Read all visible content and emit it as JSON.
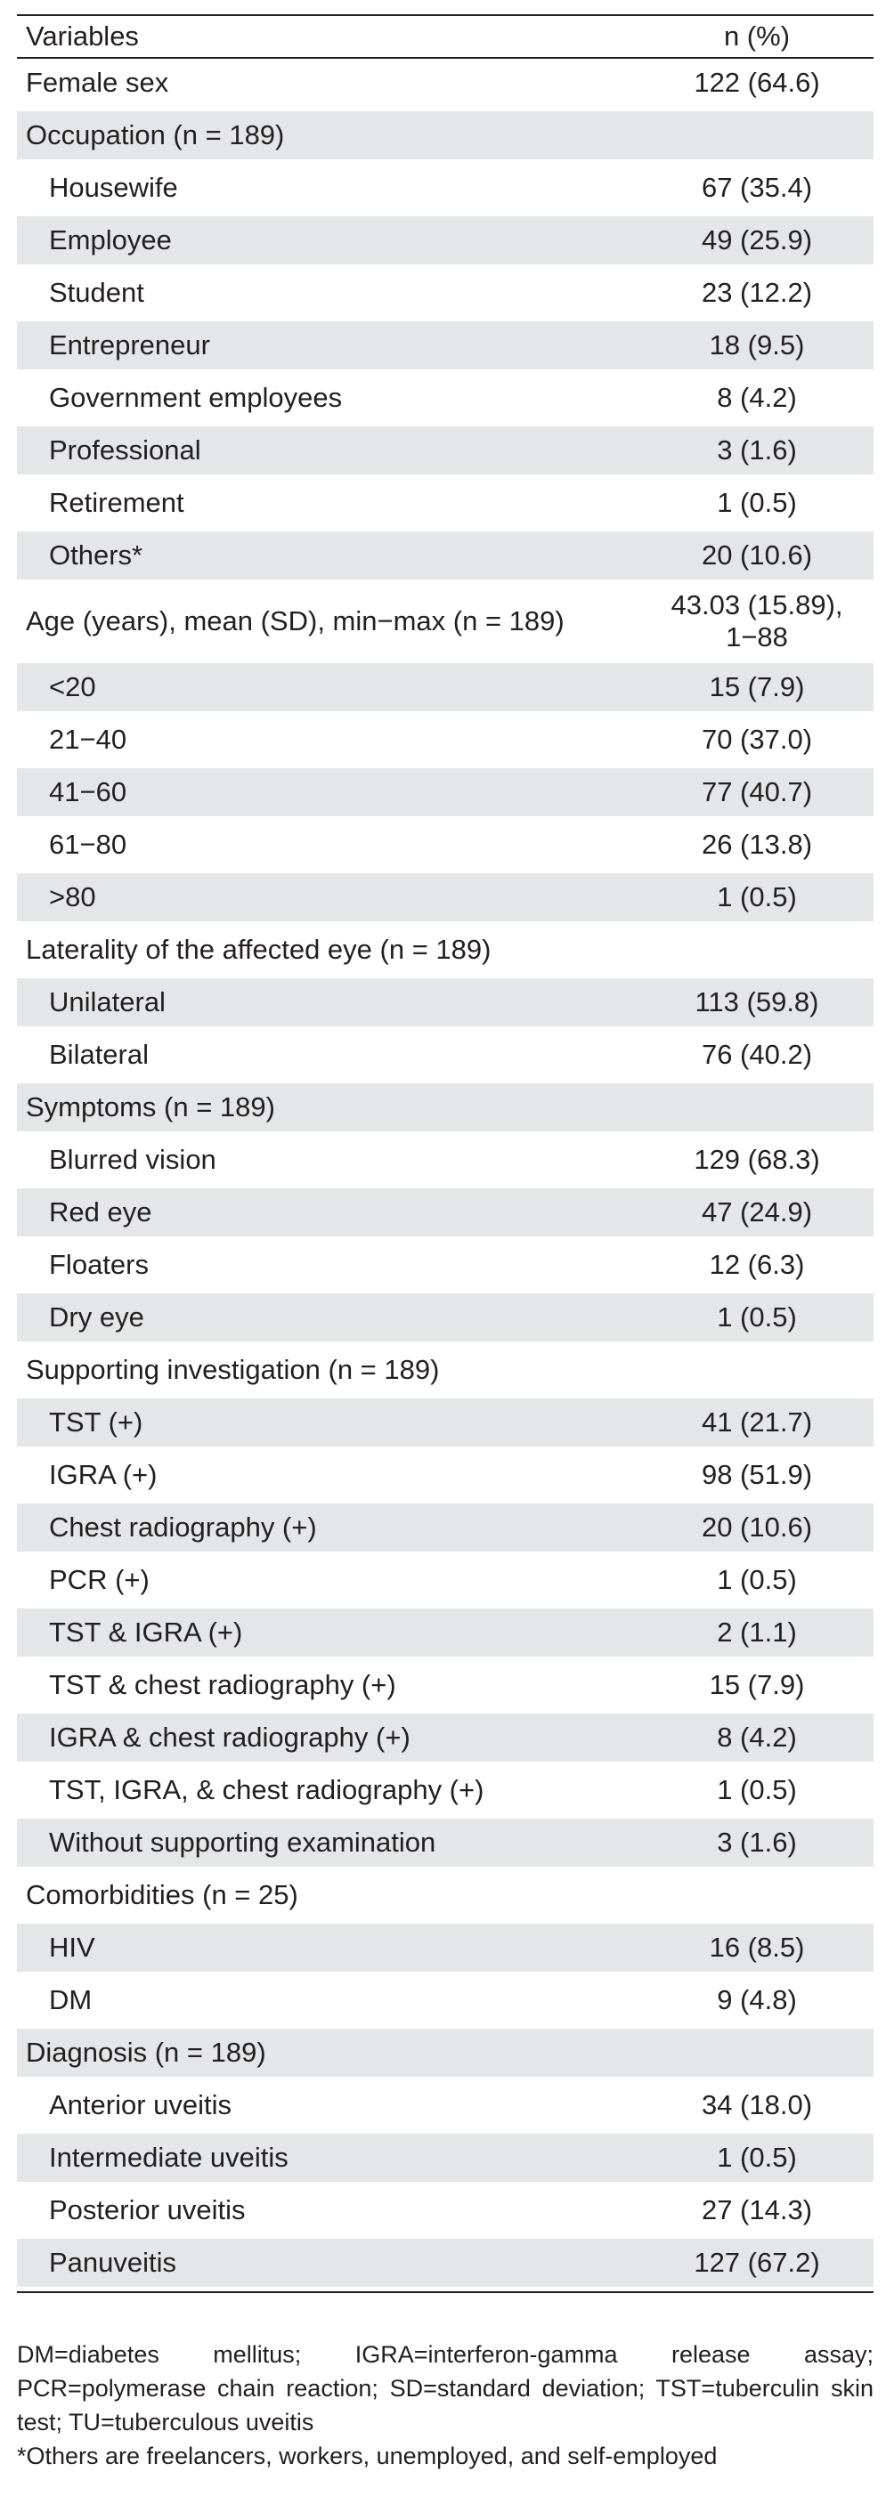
{
  "table": {
    "headers": [
      "Variables",
      "n (%)"
    ],
    "rows": [
      {
        "label": "Female sex",
        "value": "122 (64.6)",
        "indent": false,
        "shade": false
      },
      {
        "label": "Occupation (n = 189)",
        "value": "",
        "indent": false,
        "shade": true
      },
      {
        "label": "Housewife",
        "value": "67 (35.4)",
        "indent": true,
        "shade": false
      },
      {
        "label": "Employee",
        "value": "49 (25.9)",
        "indent": true,
        "shade": true
      },
      {
        "label": "Student",
        "value": "23 (12.2)",
        "indent": true,
        "shade": false
      },
      {
        "label": "Entrepreneur",
        "value": "18 (9.5)",
        "indent": true,
        "shade": true
      },
      {
        "label": "Government employees",
        "value": "8 (4.2)",
        "indent": true,
        "shade": false
      },
      {
        "label": "Professional",
        "value": "3 (1.6)",
        "indent": true,
        "shade": true
      },
      {
        "label": "Retirement",
        "value": "1 (0.5)",
        "indent": true,
        "shade": false
      },
      {
        "label": "Others*",
        "value": "20 (10.6)",
        "indent": true,
        "shade": true
      },
      {
        "label": "Age (years), mean (SD), min−max (n = 189)",
        "value": "43.03 (15.89), 1−88",
        "indent": false,
        "shade": false,
        "tall": true
      },
      {
        "label": "<20",
        "value": "15 (7.9)",
        "indent": true,
        "shade": true
      },
      {
        "label": "21−40",
        "value": "70 (37.0)",
        "indent": true,
        "shade": false
      },
      {
        "label": "41−60",
        "value": "77 (40.7)",
        "indent": true,
        "shade": true
      },
      {
        "label": "61−80",
        "value": "26 (13.8)",
        "indent": true,
        "shade": false
      },
      {
        "label": ">80",
        "value": "1 (0.5)",
        "indent": true,
        "shade": true
      },
      {
        "label": "Laterality of the affected eye (n = 189)",
        "value": "",
        "indent": false,
        "shade": false
      },
      {
        "label": "Unilateral",
        "value": "113 (59.8)",
        "indent": true,
        "shade": true
      },
      {
        "label": "Bilateral",
        "value": "76 (40.2)",
        "indent": true,
        "shade": false
      },
      {
        "label": "Symptoms (n = 189)",
        "value": "",
        "indent": false,
        "shade": true
      },
      {
        "label": "Blurred vision",
        "value": "129 (68.3)",
        "indent": true,
        "shade": false
      },
      {
        "label": "Red eye",
        "value": "47 (24.9)",
        "indent": true,
        "shade": true
      },
      {
        "label": "Floaters",
        "value": "12 (6.3)",
        "indent": true,
        "shade": false
      },
      {
        "label": "Dry eye",
        "value": "1 (0.5)",
        "indent": true,
        "shade": true
      },
      {
        "label": "Supporting investigation (n = 189)",
        "value": "",
        "indent": false,
        "shade": false
      },
      {
        "label": "TST (+)",
        "value": "41 (21.7)",
        "indent": true,
        "shade": true
      },
      {
        "label": "IGRA (+)",
        "value": "98 (51.9)",
        "indent": true,
        "shade": false
      },
      {
        "label": "Chest radiography (+)",
        "value": "20 (10.6)",
        "indent": true,
        "shade": true
      },
      {
        "label": "PCR (+)",
        "value": "1 (0.5)",
        "indent": true,
        "shade": false
      },
      {
        "label": "TST & IGRA (+)",
        "value": "2 (1.1)",
        "indent": true,
        "shade": true
      },
      {
        "label": "TST & chest radiography (+)",
        "value": "15 (7.9)",
        "indent": true,
        "shade": false
      },
      {
        "label": "IGRA & chest radiography (+)",
        "value": "8 (4.2)",
        "indent": true,
        "shade": true
      },
      {
        "label": "TST, IGRA, & chest radiography (+)",
        "value": "1 (0.5)",
        "indent": true,
        "shade": false
      },
      {
        "label": "Without supporting examination",
        "value": "3 (1.6)",
        "indent": true,
        "shade": true
      },
      {
        "label": "Comorbidities (n = 25)",
        "value": "",
        "indent": false,
        "shade": false
      },
      {
        "label": "HIV",
        "value": "16 (8.5)",
        "indent": true,
        "shade": true
      },
      {
        "label": "DM",
        "value": "9 (4.8)",
        "indent": true,
        "shade": false
      },
      {
        "label": "Diagnosis (n = 189)",
        "value": "",
        "indent": false,
        "shade": true
      },
      {
        "label": "Anterior uveitis",
        "value": "34 (18.0)",
        "indent": true,
        "shade": false
      },
      {
        "label": "Intermediate uveitis",
        "value": "1 (0.5)",
        "indent": true,
        "shade": true
      },
      {
        "label": "Posterior uveitis",
        "value": "27 (14.3)",
        "indent": true,
        "shade": false
      },
      {
        "label": "Panuveitis",
        "value": "127 (67.2)",
        "indent": true,
        "shade": true
      }
    ]
  },
  "notes": {
    "abbreviations": "DM=diabetes mellitus; IGRA=interferon-gamma release assay; PCR=polymerase chain reaction; SD=standard deviation; TST=tuberculin skin test; TU=tuberculous uveitis",
    "footnote": "*Others are freelancers, workers, unemployed, and self-employed"
  },
  "colors": {
    "shade": "#e5e6e7",
    "text": "#231f20",
    "rule": "#231f20"
  }
}
